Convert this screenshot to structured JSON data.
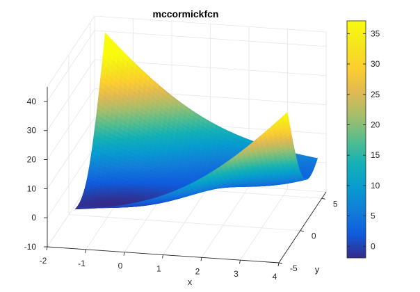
{
  "chart_data": {
    "type": "surface",
    "title": "mccormickfcn",
    "function": "z = sin(x + y) + (x - y)^2 - 1.5x + 2.5y + 1",
    "xlabel": "x",
    "ylabel": "y",
    "zlabel": "",
    "xlim": [
      -2,
      4
    ],
    "ylim": [
      -5,
      6
    ],
    "zlim": [
      -10,
      45
    ],
    "x_ticks": [
      "-2",
      "-1",
      "0",
      "1",
      "2",
      "3",
      "4"
    ],
    "y_ticks": [
      "-5",
      "0",
      "5"
    ],
    "z_ticks": [
      "-10",
      "0",
      "10",
      "20",
      "30",
      "40"
    ],
    "x_domain": [
      -1.5,
      4
    ],
    "y_domain": [
      -3,
      4
    ],
    "colorbar": {
      "colormap": "parula",
      "range": [
        -1.91,
        37.1
      ],
      "ticks": [
        "35",
        "30",
        "25",
        "20",
        "15",
        "10",
        "5",
        "0"
      ]
    },
    "grid": true
  }
}
